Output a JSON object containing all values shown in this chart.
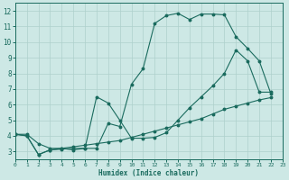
{
  "xlabel": "Humidex (Indice chaleur)",
  "bg_color": "#cde8e5",
  "grid_color": "#aed0cc",
  "line_color": "#1a6b5e",
  "x_min": 0,
  "x_max": 23,
  "y_min": 2.5,
  "y_max": 12.5,
  "yticks": [
    3,
    4,
    5,
    6,
    7,
    8,
    9,
    10,
    11,
    12
  ],
  "xticks": [
    0,
    1,
    2,
    3,
    4,
    5,
    6,
    7,
    8,
    9,
    10,
    11,
    12,
    13,
    14,
    15,
    16,
    17,
    18,
    19,
    20,
    21,
    22,
    23
  ],
  "line1_x": [
    0,
    1,
    2,
    3,
    4,
    5,
    6,
    7,
    8,
    9,
    10,
    11,
    12,
    13,
    14,
    15,
    16,
    17,
    18,
    19,
    20,
    21,
    22
  ],
  "line1_y": [
    4.1,
    4.0,
    2.8,
    3.1,
    3.15,
    3.2,
    3.2,
    3.2,
    4.8,
    4.6,
    7.3,
    8.3,
    11.2,
    11.7,
    11.85,
    11.45,
    11.8,
    11.8,
    11.75,
    10.35,
    9.6,
    8.8,
    6.7
  ],
  "line2_x": [
    0,
    1,
    2,
    3,
    4,
    5,
    6,
    7,
    8,
    9,
    10,
    11,
    12,
    13,
    14,
    15,
    16,
    17,
    18,
    19,
    20,
    21,
    22
  ],
  "line2_y": [
    4.1,
    4.0,
    2.8,
    3.1,
    3.2,
    3.1,
    3.2,
    6.5,
    6.1,
    5.0,
    3.85,
    3.85,
    3.9,
    4.2,
    5.0,
    5.8,
    6.5,
    7.2,
    8.0,
    9.5,
    8.8,
    6.8,
    6.8
  ],
  "line3_x": [
    0,
    1,
    2,
    3,
    4,
    5,
    6,
    7,
    8,
    9,
    10,
    11,
    12,
    13,
    14,
    15,
    16,
    17,
    18,
    19,
    20,
    21,
    22
  ],
  "line3_y": [
    4.1,
    4.1,
    3.5,
    3.2,
    3.2,
    3.3,
    3.4,
    3.5,
    3.6,
    3.7,
    3.9,
    4.1,
    4.3,
    4.5,
    4.7,
    4.9,
    5.1,
    5.4,
    5.7,
    5.9,
    6.1,
    6.3,
    6.45
  ]
}
